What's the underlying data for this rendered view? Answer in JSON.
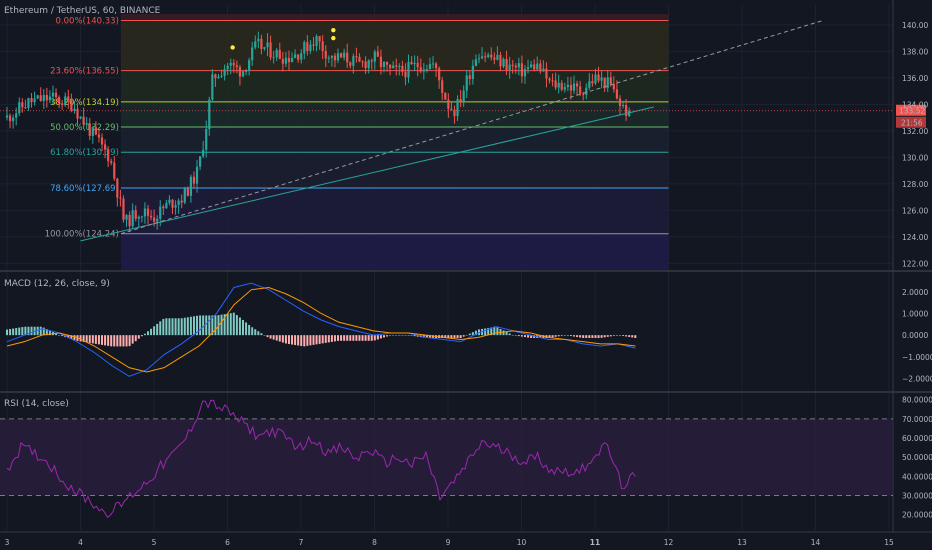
{
  "title": "Ethereum / TetherUS, 60, BINANCE",
  "colors": {
    "background": "#131722",
    "grid": "#1e2230",
    "up": "#26a69a",
    "down": "#ef5350",
    "macd_line": "#2962ff",
    "signal_line": "#ff9800",
    "hist_up": "#80cbc4",
    "hist_down": "#ffb0b0",
    "rsi_line": "#9c27b0",
    "rsi_band": "#2a1f3d",
    "trendline": "#26a69a",
    "price_tag": "#ef5350",
    "separator": "#363a45"
  },
  "price_axis": {
    "ticks": [
      "140.00",
      "138.00",
      "136.00",
      "134.00",
      "132.00",
      "130.00",
      "128.00",
      "126.00",
      "124.00",
      "122.00"
    ]
  },
  "time_axis": {
    "labels": [
      "3",
      "4",
      "5",
      "6",
      "7",
      "8",
      "9",
      "10",
      "11",
      "12",
      "13",
      "14",
      "15"
    ],
    "bold_label": "11"
  },
  "price_tag": {
    "value": "133.52",
    "countdown": "21:56"
  },
  "fib_levels": [
    {
      "label": "0.00%(140.33)",
      "price": 140.33,
      "color": "#ef5350"
    },
    {
      "label": "23.60%(136.55)",
      "price": 136.55,
      "color": "#ef5350"
    },
    {
      "label": "38.20%(134.19)",
      "price": 134.19,
      "color": "#c0ca33"
    },
    {
      "label": "50.00%(132.29)",
      "price": 132.29,
      "color": "#66bb6a"
    },
    {
      "label": "61.80%(130.39)",
      "price": 130.39,
      "color": "#26a69a"
    },
    {
      "label": "78.60%(127.69)",
      "price": 127.69,
      "color": "#42a5f5"
    },
    {
      "label": "100.00%(124.24)",
      "price": 124.24,
      "color": "#9598a1"
    }
  ],
  "fib_fills": [
    "#3a1d24",
    "#2b2a1d",
    "#1e2a1f",
    "#1b2a2a",
    "#1a2230",
    "#1c1f30",
    "#1f1c3a"
  ],
  "macd_pane": {
    "title": "MACD (12, 26, close, 9)",
    "ticks": [
      "2.0000",
      "1.0000",
      "0.0000",
      "−1.0000",
      "−2.0000"
    ]
  },
  "rsi_pane": {
    "title": "RSI (14, close)",
    "ticks": [
      "80.0000",
      "70.0000",
      "60.0000",
      "50.0000",
      "40.0000",
      "30.0000",
      "20.0000"
    ]
  },
  "chart_data": {
    "type": "candlestick",
    "title": "Ethereum / TetherUS, 60, BINANCE",
    "price_range": [
      121.5,
      141.5
    ],
    "series": [
      {
        "name": "Price (close)",
        "x_day": [
          3.0,
          3.3,
          3.6,
          3.9,
          4.0,
          4.2,
          4.4,
          4.5,
          4.6,
          4.8,
          5.0,
          5.2,
          5.4,
          5.6,
          5.7,
          5.8,
          6.0,
          6.2,
          6.4,
          6.6,
          6.8,
          7.0,
          7.2,
          7.4,
          7.6,
          7.8,
          8.0,
          8.2,
          8.4,
          8.6,
          8.8,
          9.0,
          9.1,
          9.2,
          9.4,
          9.6,
          9.8,
          10.0,
          10.2,
          10.4,
          10.6,
          10.8,
          11.0,
          11.2,
          11.4,
          11.5
        ],
        "close": [
          133.0,
          134.2,
          134.5,
          134.0,
          133.0,
          131.5,
          130.0,
          127.5,
          125.0,
          126.0,
          125.5,
          126.5,
          127.0,
          129.0,
          132.0,
          136.0,
          137.0,
          136.5,
          138.5,
          138.0,
          137.5,
          138.0,
          139.0,
          137.5,
          137.5,
          137.0,
          137.5,
          136.5,
          136.5,
          137.0,
          137.0,
          134.0,
          133.5,
          135.0,
          138.0,
          137.5,
          137.0,
          136.5,
          137.0,
          135.5,
          135.5,
          135.0,
          136.0,
          135.5,
          133.5,
          133.52
        ]
      },
      {
        "name": "MACD",
        "values": [
          -0.3,
          0.0,
          0.3,
          0.1,
          -0.3,
          -0.8,
          -1.4,
          -1.9,
          -1.6,
          -0.9,
          -0.4,
          0.2,
          1.0,
          2.2,
          2.4,
          2.1,
          1.6,
          1.1,
          0.7,
          0.4,
          0.2,
          0.0,
          0.1,
          0.1,
          -0.1,
          -0.2,
          -0.3,
          0.1,
          0.4,
          0.2,
          0.0,
          -0.2,
          -0.2,
          -0.4,
          -0.5,
          -0.4,
          -0.6
        ]
      },
      {
        "name": "Signal",
        "values": [
          -0.5,
          -0.3,
          0.0,
          0.1,
          -0.1,
          -0.5,
          -1.0,
          -1.5,
          -1.7,
          -1.5,
          -1.0,
          -0.5,
          0.3,
          1.4,
          2.1,
          2.2,
          1.9,
          1.5,
          1.0,
          0.6,
          0.4,
          0.2,
          0.1,
          0.1,
          0.0,
          -0.1,
          -0.2,
          -0.1,
          0.1,
          0.2,
          0.1,
          -0.1,
          -0.2,
          -0.3,
          -0.4,
          -0.4,
          -0.5
        ]
      },
      {
        "name": "RSI",
        "values": [
          44,
          55,
          52,
          47,
          38,
          32,
          27,
          21,
          24,
          31,
          37,
          45,
          52,
          62,
          79,
          77,
          73,
          67,
          61,
          64,
          60,
          55,
          60,
          52,
          55,
          49,
          54,
          47,
          50,
          46,
          51,
          29,
          37,
          47,
          58,
          55,
          52,
          48,
          50,
          43,
          43,
          42,
          51,
          56,
          35,
          40
        ]
      }
    ],
    "macd_range": [
      -2.3,
      2.5
    ],
    "rsi_range": [
      12,
      83
    ],
    "rsi_bands": [
      30,
      70
    ],
    "markers": [
      {
        "day": 6.07,
        "price": 138.3,
        "color": "#ffeb3b"
      },
      {
        "day": 7.44,
        "price": 139.6,
        "color": "#ffeb3b"
      },
      {
        "day": 7.44,
        "price": 139.0,
        "color": "#ffeb3b"
      }
    ],
    "trendline": {
      "from": [
        4.0,
        123.7
      ],
      "to": [
        11.8,
        133.8
      ]
    },
    "fib_anchor": {
      "from": [
        4.55,
        124.24
      ],
      "to": [
        14.1,
        140.33
      ]
    }
  }
}
